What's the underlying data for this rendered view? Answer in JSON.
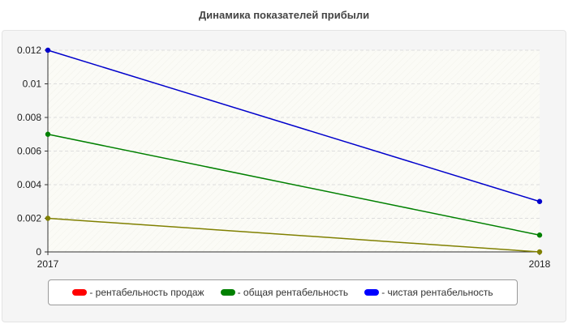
{
  "chart_data": {
    "type": "line",
    "title": "Динамика показателей прибыли",
    "x": [
      "2017",
      "2018"
    ],
    "ylim": [
      0,
      0.012
    ],
    "yticks": [
      0,
      0.002,
      0.004,
      0.006,
      0.008,
      0.01,
      0.012
    ],
    "ytick_labels": [
      "0",
      "0.002",
      "0.004",
      "0.006",
      "0.008",
      "0.01",
      "0.012"
    ],
    "grid": true,
    "legend_position": "bottom",
    "series": [
      {
        "name": "- рентабельность продаж",
        "values": [
          0.002,
          0.0
        ],
        "color": "#ff0000",
        "line_color": "#808000"
      },
      {
        "name": "- общая рентабельность",
        "values": [
          0.007,
          0.001
        ],
        "color": "#008000",
        "line_color": "#008000"
      },
      {
        "name": "- чистая рентабельность",
        "values": [
          0.012,
          0.003
        ],
        "color": "#0000ff",
        "line_color": "#0000cc"
      }
    ]
  }
}
